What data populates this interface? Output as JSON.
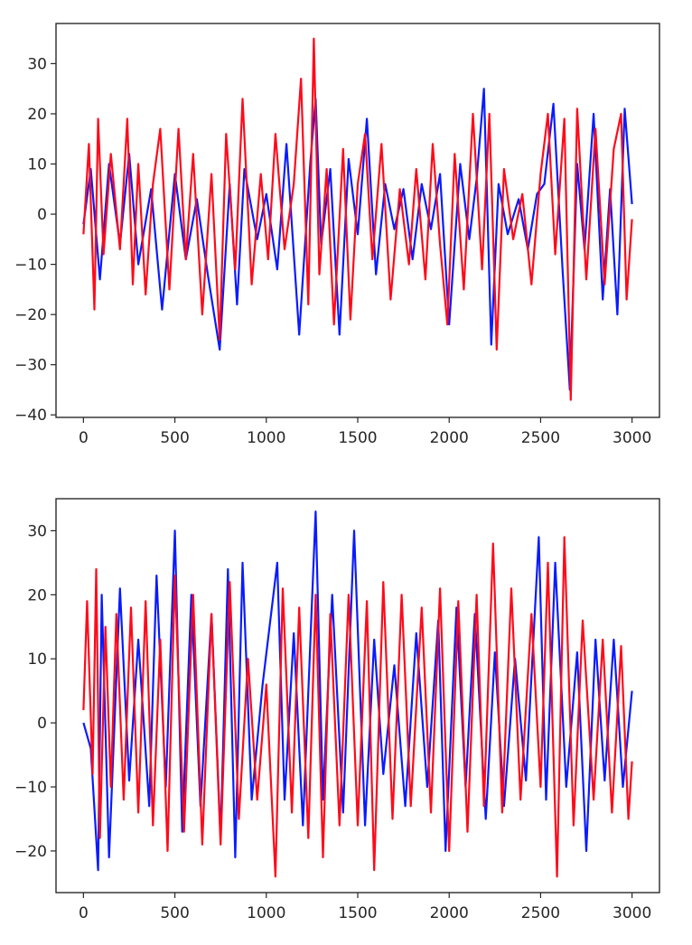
{
  "chart_data": [
    {
      "type": "line",
      "title": "",
      "xlabel": "",
      "ylabel": "",
      "grid": false,
      "xlim": [
        -150,
        3150
      ],
      "ylim": [
        -40.5,
        38
      ],
      "xticks": [
        0,
        500,
        1000,
        1500,
        2000,
        2500,
        3000
      ],
      "xtick_labels": [
        "0",
        "500",
        "1000",
        "1500",
        "2000",
        "2500",
        "3000"
      ],
      "yticks": [
        30,
        20,
        10,
        0,
        -10,
        -20,
        -30,
        -40
      ],
      "ytick_labels": [
        "30",
        "20",
        "10",
        "0",
        "−10",
        "−20",
        "−30",
        "−40"
      ],
      "series": [
        {
          "color": "#0a1bff",
          "x": [
            0,
            40,
            90,
            140,
            200,
            250,
            300,
            370,
            430,
            500,
            560,
            620,
            680,
            745,
            800,
            840,
            880,
            950,
            1000,
            1060,
            1110,
            1180,
            1240,
            1270,
            1300,
            1350,
            1400,
            1450,
            1500,
            1550,
            1600,
            1650,
            1700,
            1750,
            1800,
            1850,
            1900,
            1950,
            2000,
            2060,
            2110,
            2150,
            2190,
            2230,
            2270,
            2320,
            2380,
            2430,
            2480,
            2520,
            2570,
            2620,
            2660,
            2700,
            2740,
            2790,
            2840,
            2880,
            2920,
            2960,
            3000
          ],
          "y": [
            -2,
            9,
            -13,
            10,
            -6,
            12,
            -10,
            5,
            -19,
            8,
            -9,
            3,
            -12,
            -27,
            6,
            -18,
            9,
            -5,
            4,
            -11,
            14,
            -24,
            10,
            23,
            -6,
            9,
            -24,
            11,
            -4,
            19,
            -12,
            6,
            -3,
            5,
            -9,
            6,
            -3,
            8,
            -22,
            10,
            -5,
            7,
            25,
            -26,
            6,
            -4,
            3,
            -7,
            4,
            6,
            22,
            -11,
            -35,
            10,
            -7,
            20,
            -17,
            5,
            -20,
            21,
            2
          ]
        },
        {
          "color": "#ff0a1a",
          "x": [
            0,
            30,
            60,
            80,
            110,
            150,
            200,
            240,
            270,
            300,
            340,
            380,
            420,
            470,
            520,
            560,
            600,
            650,
            700,
            745,
            780,
            830,
            870,
            920,
            970,
            1010,
            1050,
            1100,
            1150,
            1190,
            1230,
            1260,
            1290,
            1330,
            1370,
            1420,
            1460,
            1500,
            1540,
            1580,
            1630,
            1680,
            1730,
            1780,
            1820,
            1870,
            1910,
            1950,
            1990,
            2030,
            2080,
            2130,
            2180,
            2220,
            2260,
            2300,
            2350,
            2400,
            2450,
            2500,
            2540,
            2580,
            2630,
            2665,
            2700,
            2750,
            2800,
            2850,
            2900,
            2940,
            2970,
            3000
          ],
          "y": [
            -4,
            14,
            -19,
            19,
            -8,
            12,
            -7,
            19,
            -14,
            10,
            -16,
            6,
            17,
            -15,
            17,
            -9,
            12,
            -20,
            8,
            -25,
            16,
            -11,
            23,
            -14,
            8,
            -9,
            16,
            -7,
            6,
            27,
            -18,
            35,
            -12,
            9,
            -22,
            13,
            -21,
            6,
            16,
            -9,
            14,
            -17,
            5,
            -10,
            9,
            -13,
            14,
            -6,
            -22,
            12,
            -15,
            20,
            -11,
            20,
            -27,
            9,
            -5,
            4,
            -14,
            8,
            20,
            -8,
            19,
            -37,
            21,
            -13,
            17,
            -14,
            13,
            20,
            -17,
            -1
          ]
        }
      ]
    },
    {
      "type": "line",
      "title": "",
      "xlabel": "",
      "ylabel": "",
      "grid": false,
      "xlim": [
        -150,
        3150
      ],
      "ylim": [
        -26.5,
        35
      ],
      "xticks": [
        0,
        500,
        1000,
        1500,
        2000,
        2500,
        3000
      ],
      "xtick_labels": [
        "0",
        "500",
        "1000",
        "1500",
        "2000",
        "2500",
        "3000"
      ],
      "yticks": [
        30,
        20,
        10,
        0,
        -10,
        -20
      ],
      "ytick_labels": [
        "30",
        "20",
        "10",
        "0",
        "−10",
        "−20"
      ],
      "series": [
        {
          "color": "#0a1bff",
          "x": [
            0,
            40,
            80,
            100,
            140,
            200,
            250,
            300,
            360,
            400,
            450,
            500,
            540,
            590,
            640,
            700,
            750,
            790,
            830,
            870,
            920,
            980,
            1060,
            1100,
            1150,
            1200,
            1270,
            1310,
            1360,
            1420,
            1480,
            1540,
            1590,
            1640,
            1700,
            1760,
            1820,
            1880,
            1940,
            1980,
            2040,
            2090,
            2140,
            2200,
            2250,
            2300,
            2360,
            2420,
            2490,
            2530,
            2580,
            2640,
            2700,
            2750,
            2800,
            2850,
            2900,
            2950,
            3000
          ],
          "y": [
            0,
            -4,
            -23,
            20,
            -21,
            21,
            -9,
            13,
            -13,
            23,
            -10,
            30,
            -17,
            20,
            -13,
            17,
            -18,
            24,
            -21,
            25,
            -12,
            6,
            25,
            -12,
            14,
            -16,
            33,
            -12,
            20,
            -14,
            30,
            -16,
            13,
            -8,
            9,
            -13,
            14,
            -10,
            16,
            -20,
            18,
            -10,
            17,
            -15,
            11,
            -13,
            10,
            -9,
            29,
            -12,
            25,
            -10,
            11,
            -20,
            13,
            -9,
            13,
            -10,
            5
          ]
        },
        {
          "color": "#ff0a1a",
          "x": [
            0,
            20,
            50,
            70,
            90,
            120,
            150,
            180,
            220,
            260,
            300,
            340,
            380,
            420,
            460,
            500,
            550,
            600,
            650,
            700,
            750,
            800,
            850,
            900,
            950,
            1000,
            1050,
            1090,
            1140,
            1180,
            1230,
            1270,
            1310,
            1350,
            1400,
            1450,
            1500,
            1550,
            1590,
            1640,
            1690,
            1740,
            1790,
            1850,
            1900,
            1950,
            2000,
            2050,
            2100,
            2150,
            2190,
            2240,
            2290,
            2340,
            2390,
            2450,
            2500,
            2540,
            2590,
            2630,
            2680,
            2730,
            2790,
            2840,
            2890,
            2940,
            2980,
            3000
          ],
          "y": [
            2,
            19,
            -8,
            24,
            -18,
            15,
            -10,
            17,
            -12,
            18,
            -14,
            19,
            -16,
            13,
            -20,
            23,
            -17,
            20,
            -19,
            17,
            -19,
            22,
            -15,
            10,
            -12,
            6,
            -24,
            21,
            -14,
            18,
            -18,
            20,
            -21,
            17,
            -16,
            20,
            -16,
            19,
            -23,
            22,
            -15,
            20,
            -13,
            18,
            -14,
            21,
            -20,
            19,
            -17,
            20,
            -13,
            28,
            -14,
            21,
            -12,
            17,
            -10,
            25,
            -24,
            29,
            -16,
            16,
            -12,
            13,
            -14,
            12,
            -15,
            -6
          ]
        }
      ]
    }
  ]
}
